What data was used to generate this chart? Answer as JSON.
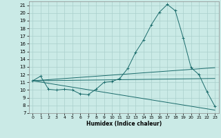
{
  "xlabel": "Humidex (Indice chaleur)",
  "xlim": [
    -0.5,
    23.5
  ],
  "ylim": [
    7,
    21.5
  ],
  "xticks": [
    0,
    1,
    2,
    3,
    4,
    5,
    6,
    7,
    8,
    9,
    10,
    11,
    12,
    13,
    14,
    15,
    16,
    17,
    18,
    19,
    20,
    21,
    22,
    23
  ],
  "yticks": [
    7,
    8,
    9,
    10,
    11,
    12,
    13,
    14,
    15,
    16,
    17,
    18,
    19,
    20,
    21
  ],
  "background_color": "#caeae6",
  "grid_color": "#aacfcc",
  "line_color": "#1a6b6b",
  "series": [
    {
      "x": [
        0,
        1,
        2,
        3,
        4,
        5,
        6,
        7,
        8,
        9,
        10,
        11,
        12,
        13,
        14,
        15,
        16,
        17,
        18,
        19,
        20,
        21,
        22,
        23
      ],
      "y": [
        11.2,
        11.8,
        10.1,
        10.0,
        10.1,
        10.0,
        9.5,
        9.4,
        10.1,
        11.0,
        11.1,
        11.5,
        12.8,
        14.9,
        16.5,
        18.5,
        20.1,
        21.1,
        20.3,
        16.8,
        12.9,
        12.0,
        9.8,
        7.9
      ],
      "marker": true
    },
    {
      "x": [
        0,
        23
      ],
      "y": [
        11.2,
        12.9
      ],
      "marker": false
    },
    {
      "x": [
        0,
        23
      ],
      "y": [
        11.2,
        11.5
      ],
      "marker": false
    },
    {
      "x": [
        0,
        23
      ],
      "y": [
        11.2,
        7.4
      ],
      "marker": false
    }
  ]
}
